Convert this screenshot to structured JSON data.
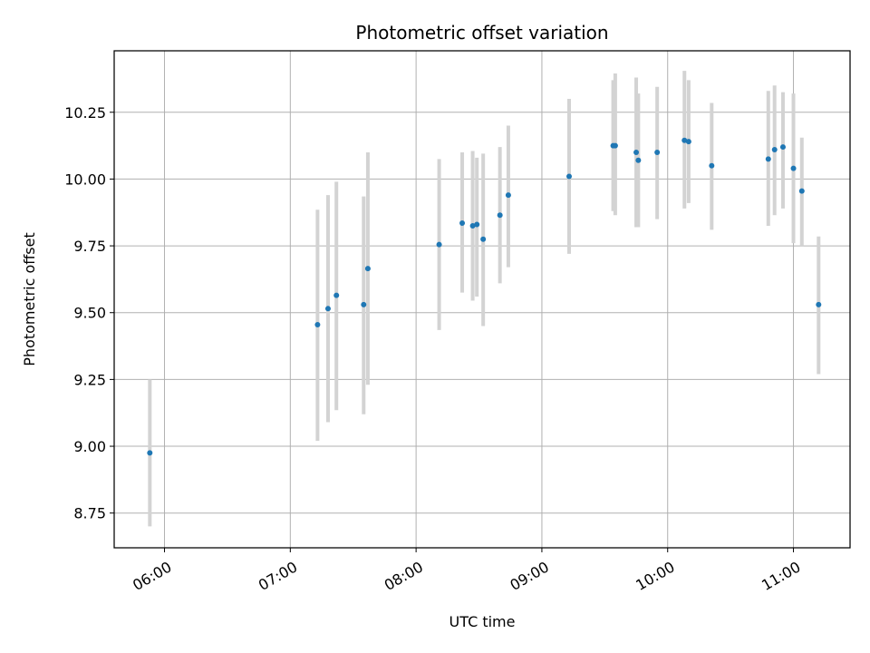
{
  "chart_data": {
    "type": "scatter",
    "title": "Photometric offset variation",
    "xlabel": "UTC time",
    "ylabel": "Photometric offset",
    "x_axis_kind": "time",
    "xlim": [
      "05:36",
      "11:27"
    ],
    "ylim": [
      8.62,
      10.48
    ],
    "x_ticks": [
      "06:00",
      "07:00",
      "08:00",
      "09:00",
      "10:00",
      "11:00"
    ],
    "y_ticks": [
      8.75,
      9.0,
      9.25,
      9.5,
      9.75,
      10.0,
      10.25
    ],
    "y_tick_labels": [
      "8.75",
      "9.00",
      "9.25",
      "9.50",
      "9.75",
      "10.00",
      "10.25"
    ],
    "grid": true,
    "series": [
      {
        "marker_color": "#1f77b4",
        "errorbar_color": "#d3d3d3",
        "points": [
          {
            "x": "05:53",
            "y": 8.975,
            "ylow": 8.7,
            "yhigh": 9.25
          },
          {
            "x": "07:13",
            "y": 9.455,
            "ylow": 9.02,
            "yhigh": 9.885
          },
          {
            "x": "07:18",
            "y": 9.515,
            "ylow": 9.09,
            "yhigh": 9.94
          },
          {
            "x": "07:22",
            "y": 9.565,
            "ylow": 9.135,
            "yhigh": 9.99
          },
          {
            "x": "07:35",
            "y": 9.53,
            "ylow": 9.12,
            "yhigh": 9.935
          },
          {
            "x": "07:37",
            "y": 9.665,
            "ylow": 9.23,
            "yhigh": 10.1
          },
          {
            "x": "08:11",
            "y": 9.755,
            "ylow": 9.435,
            "yhigh": 10.075
          },
          {
            "x": "08:22",
            "y": 9.835,
            "ylow": 9.575,
            "yhigh": 10.1
          },
          {
            "x": "08:27",
            "y": 9.825,
            "ylow": 9.545,
            "yhigh": 10.105
          },
          {
            "x": "08:29",
            "y": 9.83,
            "ylow": 9.56,
            "yhigh": 10.08
          },
          {
            "x": "08:32",
            "y": 9.775,
            "ylow": 9.45,
            "yhigh": 10.095
          },
          {
            "x": "08:40",
            "y": 9.865,
            "ylow": 9.61,
            "yhigh": 10.12
          },
          {
            "x": "08:44",
            "y": 9.94,
            "ylow": 9.67,
            "yhigh": 10.2
          },
          {
            "x": "09:13",
            "y": 10.01,
            "ylow": 9.72,
            "yhigh": 10.3
          },
          {
            "x": "09:34",
            "y": 10.125,
            "ylow": 9.88,
            "yhigh": 10.37
          },
          {
            "x": "09:35",
            "y": 10.125,
            "ylow": 9.865,
            "yhigh": 10.395
          },
          {
            "x": "09:45",
            "y": 10.1,
            "ylow": 9.82,
            "yhigh": 10.38
          },
          {
            "x": "09:46",
            "y": 10.07,
            "ylow": 9.82,
            "yhigh": 10.32
          },
          {
            "x": "09:55",
            "y": 10.1,
            "ylow": 9.85,
            "yhigh": 10.345
          },
          {
            "x": "10:08",
            "y": 10.145,
            "ylow": 9.89,
            "yhigh": 10.405
          },
          {
            "x": "10:10",
            "y": 10.14,
            "ylow": 9.91,
            "yhigh": 10.37
          },
          {
            "x": "10:21",
            "y": 10.05,
            "ylow": 9.81,
            "yhigh": 10.285
          },
          {
            "x": "10:48",
            "y": 10.075,
            "ylow": 9.825,
            "yhigh": 10.33
          },
          {
            "x": "10:51",
            "y": 10.11,
            "ylow": 9.865,
            "yhigh": 10.35
          },
          {
            "x": "10:55",
            "y": 10.12,
            "ylow": 9.89,
            "yhigh": 10.325
          },
          {
            "x": "11:00",
            "y": 10.04,
            "ylow": 9.76,
            "yhigh": 10.32
          },
          {
            "x": "11:04",
            "y": 9.955,
            "ylow": 9.75,
            "yhigh": 10.155
          },
          {
            "x": "11:12",
            "y": 9.53,
            "ylow": 9.27,
            "yhigh": 9.785
          }
        ]
      }
    ]
  }
}
